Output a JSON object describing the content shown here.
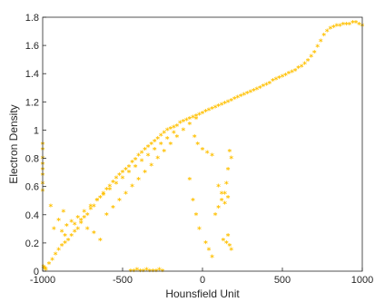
{
  "chart_data": {
    "type": "scatter",
    "title": "",
    "xlabel": "Hounsfield Unit",
    "ylabel": "Electron Density",
    "xlim": [
      -1000,
      1000
    ],
    "ylim": [
      0,
      1.8
    ],
    "xticks": [
      -1000,
      -500,
      0,
      500,
      1000
    ],
    "xtick_labels": [
      "-1000",
      "-500",
      "0",
      "500",
      "1000"
    ],
    "yticks": [
      0,
      0.2,
      0.4,
      0.6,
      0.8,
      1,
      1.2,
      1.4,
      1.6,
      1.8
    ],
    "ytick_labels": [
      "0",
      "0.2",
      "0.4",
      "0.6",
      "0.8",
      "1",
      "1.2",
      "1.4",
      "1.6",
      "1.8"
    ],
    "grid": false,
    "legend": "none",
    "marker": "asterisk",
    "color": "#FFC000",
    "series": [
      {
        "x": [
          -1000,
          -1000,
          -1000,
          -1000,
          -1000,
          -1000,
          -1000,
          -1000,
          -995,
          -990,
          -985,
          -980,
          -960,
          -940,
          -920,
          -900,
          -880,
          -860,
          -840,
          -820,
          -800,
          -780,
          -760,
          -740,
          -720,
          -700,
          -680,
          -660,
          -640,
          -620,
          -600,
          -580,
          -560,
          -540,
          -520,
          -500,
          -480,
          -460,
          -440,
          -420,
          -400,
          -380,
          -360,
          -340,
          -320,
          -300,
          -280,
          -260,
          -240,
          -220,
          -200,
          -180,
          -160,
          -140,
          -120,
          -100,
          -80,
          -60,
          -40,
          -20,
          0,
          20,
          40,
          60,
          80,
          100,
          120,
          140,
          160,
          180,
          200,
          220,
          240,
          260,
          280,
          300,
          320,
          340,
          360,
          380,
          400,
          420,
          440,
          460,
          480,
          500,
          520,
          540,
          560,
          580,
          600,
          620,
          640,
          660,
          680,
          700,
          720,
          740,
          760,
          780,
          800,
          820,
          840,
          860,
          880,
          900,
          920,
          940,
          960,
          980,
          1000,
          -880,
          -850,
          -820,
          -780,
          -740,
          -700,
          -660,
          -620,
          -580,
          -540,
          -500,
          -460,
          -420,
          -380,
          -340,
          -300,
          -260,
          -220,
          -180,
          -600,
          -560,
          -520,
          -480,
          -440,
          -400,
          -360,
          -320,
          -280,
          -240,
          -200,
          -160,
          -120,
          -80,
          -40,
          -950,
          -900,
          -930,
          -870,
          -860,
          -800,
          -760,
          -720,
          -680,
          -640,
          -450,
          -430,
          -410,
          -390,
          -370,
          -350,
          -330,
          -310,
          -290,
          -270,
          -250,
          -80,
          -60,
          -40,
          -20,
          20,
          40,
          60,
          80,
          100,
          120,
          140,
          150,
          160,
          170,
          180,
          100,
          120,
          140,
          160,
          130,
          150,
          170,
          180,
          160,
          -50,
          -30,
          0,
          30,
          60
        ],
        "y": [
          0.57,
          0.62,
          0.68,
          0.72,
          0.76,
          0.8,
          0.86,
          0.9,
          0.03,
          0.02,
          0.02,
          0.01,
          0.05,
          0.08,
          0.12,
          0.15,
          0.18,
          0.2,
          0.22,
          0.25,
          0.28,
          0.3,
          0.34,
          0.38,
          0.4,
          0.44,
          0.46,
          0.5,
          0.52,
          0.55,
          0.58,
          0.6,
          0.63,
          0.66,
          0.68,
          0.7,
          0.72,
          0.74,
          0.77,
          0.79,
          0.82,
          0.84,
          0.86,
          0.88,
          0.9,
          0.92,
          0.94,
          0.96,
          0.98,
          1.0,
          1.01,
          1.02,
          1.03,
          1.05,
          1.06,
          1.07,
          1.08,
          1.09,
          1.1,
          1.11,
          1.12,
          1.13,
          1.14,
          1.15,
          1.16,
          1.17,
          1.18,
          1.19,
          1.2,
          1.21,
          1.22,
          1.23,
          1.24,
          1.25,
          1.26,
          1.27,
          1.28,
          1.29,
          1.3,
          1.31,
          1.32,
          1.33,
          1.35,
          1.36,
          1.37,
          1.38,
          1.39,
          1.4,
          1.41,
          1.42,
          1.44,
          1.45,
          1.47,
          1.49,
          1.52,
          1.55,
          1.59,
          1.63,
          1.67,
          1.7,
          1.72,
          1.73,
          1.74,
          1.74,
          1.75,
          1.75,
          1.75,
          1.76,
          1.76,
          1.75,
          1.74,
          0.28,
          0.32,
          0.35,
          0.38,
          0.42,
          0.46,
          0.5,
          0.54,
          0.58,
          0.62,
          0.66,
          0.7,
          0.74,
          0.78,
          0.82,
          0.86,
          0.9,
          0.94,
          0.98,
          0.4,
          0.45,
          0.5,
          0.55,
          0.6,
          0.65,
          0.7,
          0.75,
          0.8,
          0.85,
          0.9,
          0.95,
          1.0,
          1.04,
          1.08,
          0.46,
          0.36,
          0.3,
          0.42,
          0.25,
          0.33,
          0.36,
          0.3,
          0.27,
          0.22,
          0.0,
          0.0,
          0.01,
          0.0,
          0.0,
          0.01,
          0.0,
          0.0,
          0.0,
          0.01,
          0.0,
          0.65,
          0.5,
          0.4,
          0.3,
          0.2,
          0.15,
          0.1,
          0.4,
          0.45,
          0.5,
          0.55,
          0.62,
          0.72,
          0.85,
          0.8,
          0.6,
          0.55,
          0.48,
          0.52,
          0.22,
          0.2,
          0.18,
          0.15,
          0.25,
          0.95,
          0.9,
          0.86,
          0.84,
          0.82
        ]
      }
    ]
  }
}
